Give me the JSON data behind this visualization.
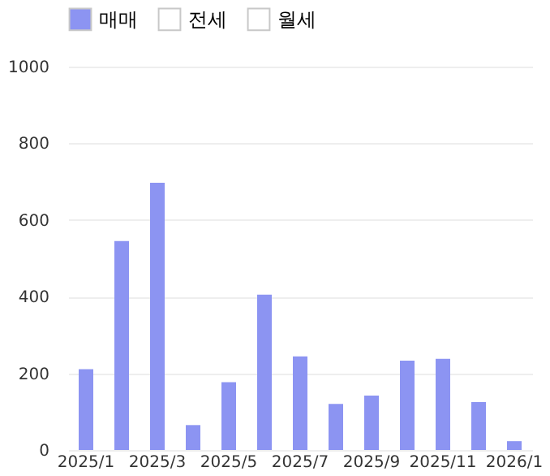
{
  "chart_data": {
    "type": "bar",
    "categories": [
      "2025/1",
      null,
      "2025/3",
      null,
      "2025/5",
      null,
      "2025/7",
      null,
      "2025/9",
      null,
      "2025/11",
      null,
      "2026/1"
    ],
    "series": [
      {
        "name": "매매",
        "color": "#8c94f2",
        "values": [
          211,
          545,
          697,
          65,
          177,
          405,
          244,
          120,
          142,
          233,
          238,
          125,
          23
        ]
      },
      {
        "name": "전세",
        "color": "#ffffff",
        "values": [
          null,
          null,
          null,
          null,
          null,
          null,
          null,
          null,
          null,
          null,
          null,
          null,
          null
        ]
      },
      {
        "name": "월세",
        "color": "#ffffff",
        "values": [
          null,
          null,
          null,
          null,
          null,
          null,
          null,
          null,
          null,
          null,
          null,
          null,
          null
        ]
      }
    ],
    "ylim": [
      0,
      1000
    ],
    "yticks": [
      0,
      200,
      400,
      600,
      800,
      1000
    ],
    "grid": "y",
    "legend": "top left"
  }
}
